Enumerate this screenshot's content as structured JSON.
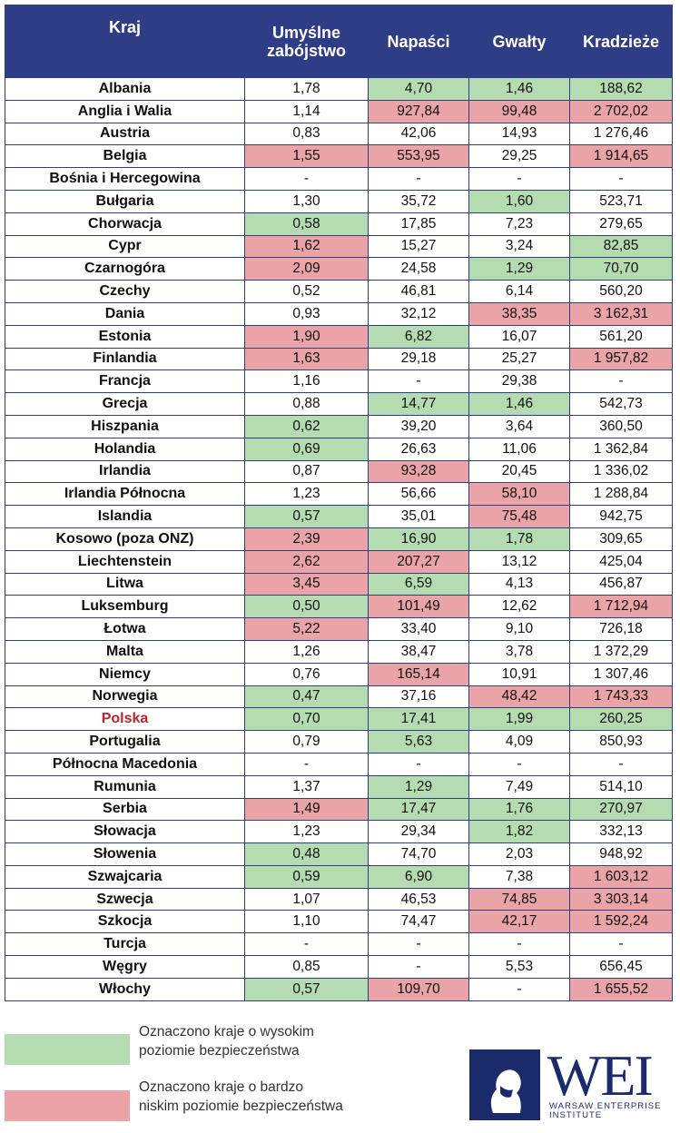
{
  "table": {
    "headers": {
      "country": "Kraj",
      "murders_line1": "Umyślne",
      "murders_line2": "zabójstwo",
      "assaults": "Napaści",
      "rapes": "Gwałty",
      "thefts": "Kradzieże"
    },
    "rows": [
      {
        "country": "Albania",
        "murders": "1,78",
        "assaults": "4,70",
        "rapes": "1,46",
        "thefts": "188,62",
        "hl": [
          "",
          "g",
          "g",
          "g"
        ]
      },
      {
        "country": "Anglia i Walia",
        "murders": "1,14",
        "assaults": "927,84",
        "rapes": "99,48",
        "thefts": "2 702,02",
        "hl": [
          "",
          "r",
          "r",
          "r"
        ]
      },
      {
        "country": "Austria",
        "murders": "0,83",
        "assaults": "42,06",
        "rapes": "14,93",
        "thefts": "1 276,46",
        "hl": [
          "",
          "",
          "",
          ""
        ]
      },
      {
        "country": "Belgia",
        "murders": "1,55",
        "assaults": "553,95",
        "rapes": "29,25",
        "thefts": "1 914,65",
        "hl": [
          "r",
          "r",
          "",
          "r"
        ]
      },
      {
        "country": "Bośnia i Hercegowina",
        "murders": "-",
        "assaults": "-",
        "rapes": "-",
        "thefts": "-",
        "hl": [
          "",
          "",
          "",
          ""
        ]
      },
      {
        "country": "Bułgaria",
        "murders": "1,30",
        "assaults": "35,72",
        "rapes": "1,60",
        "thefts": "523,71",
        "hl": [
          "",
          "",
          "g",
          ""
        ]
      },
      {
        "country": "Chorwacja",
        "murders": "0,58",
        "assaults": "17,85",
        "rapes": "7,23",
        "thefts": "279,65",
        "hl": [
          "g",
          "",
          "",
          ""
        ]
      },
      {
        "country": "Cypr",
        "murders": "1,62",
        "assaults": "15,27",
        "rapes": "3,24",
        "thefts": "82,85",
        "hl": [
          "r",
          "",
          "",
          "g"
        ]
      },
      {
        "country": "Czarnogóra",
        "murders": "2,09",
        "assaults": "24,58",
        "rapes": "1,29",
        "thefts": "70,70",
        "hl": [
          "r",
          "",
          "g",
          "g"
        ]
      },
      {
        "country": "Czechy",
        "murders": "0,52",
        "assaults": "46,81",
        "rapes": "6,14",
        "thefts": "560,20",
        "hl": [
          "",
          "",
          "",
          ""
        ]
      },
      {
        "country": "Dania",
        "murders": "0,93",
        "assaults": "32,12",
        "rapes": "38,35",
        "thefts": "3 162,31",
        "hl": [
          "",
          "",
          "r",
          "r"
        ]
      },
      {
        "country": "Estonia",
        "murders": "1,90",
        "assaults": "6,82",
        "rapes": "16,07",
        "thefts": "561,20",
        "hl": [
          "r",
          "g",
          "",
          ""
        ]
      },
      {
        "country": "Finlandia",
        "murders": "1,63",
        "assaults": "29,18",
        "rapes": "25,27",
        "thefts": "1 957,82",
        "hl": [
          "r",
          "",
          "",
          "r"
        ]
      },
      {
        "country": "Francja",
        "murders": "1,16",
        "assaults": "-",
        "rapes": "29,38",
        "thefts": "-",
        "hl": [
          "",
          "",
          "",
          ""
        ]
      },
      {
        "country": "Grecja",
        "murders": "0,88",
        "assaults": "14,77",
        "rapes": "1,46",
        "thefts": "542,73",
        "hl": [
          "",
          "g",
          "g",
          ""
        ]
      },
      {
        "country": "Hiszpania",
        "murders": "0,62",
        "assaults": "39,20",
        "rapes": "3,64",
        "thefts": "360,50",
        "hl": [
          "g",
          "",
          "",
          ""
        ]
      },
      {
        "country": "Holandia",
        "murders": "0,69",
        "assaults": "26,63",
        "rapes": "11,06",
        "thefts": "1 362,84",
        "hl": [
          "g",
          "",
          "",
          ""
        ]
      },
      {
        "country": "Irlandia",
        "murders": "0,87",
        "assaults": "93,28",
        "rapes": "20,45",
        "thefts": "1 336,02",
        "hl": [
          "",
          "r",
          "",
          ""
        ]
      },
      {
        "country": "Irlandia Północna",
        "murders": "1,23",
        "assaults": "56,66",
        "rapes": "58,10",
        "thefts": "1 288,84",
        "hl": [
          "",
          "",
          "r",
          ""
        ]
      },
      {
        "country": "Islandia",
        "murders": "0,57",
        "assaults": "35,01",
        "rapes": "75,48",
        "thefts": "942,75",
        "hl": [
          "g",
          "",
          "r",
          ""
        ]
      },
      {
        "country": "Kosowo (poza ONZ)",
        "murders": "2,39",
        "assaults": "16,90",
        "rapes": "1,78",
        "thefts": "309,65",
        "hl": [
          "r",
          "g",
          "g",
          ""
        ]
      },
      {
        "country": "Liechtenstein",
        "murders": "2,62",
        "assaults": "207,27",
        "rapes": "13,12",
        "thefts": "425,04",
        "hl": [
          "r",
          "r",
          "",
          ""
        ]
      },
      {
        "country": "Litwa",
        "murders": "3,45",
        "assaults": "6,59",
        "rapes": "4,13",
        "thefts": "456,87",
        "hl": [
          "r",
          "g",
          "",
          ""
        ]
      },
      {
        "country": "Luksemburg",
        "murders": "0,50",
        "assaults": "101,49",
        "rapes": "12,62",
        "thefts": "1 712,94",
        "hl": [
          "g",
          "r",
          "",
          "r"
        ]
      },
      {
        "country": "Łotwa",
        "murders": "5,22",
        "assaults": "33,40",
        "rapes": "9,10",
        "thefts": "726,18",
        "hl": [
          "r",
          "",
          "",
          ""
        ]
      },
      {
        "country": "Malta",
        "murders": "1,26",
        "assaults": "38,47",
        "rapes": "3,78",
        "thefts": "1 372,29",
        "hl": [
          "",
          "",
          "",
          ""
        ]
      },
      {
        "country": "Niemcy",
        "murders": "0,76",
        "assaults": "165,14",
        "rapes": "10,91",
        "thefts": "1 307,46",
        "hl": [
          "",
          "r",
          "",
          ""
        ]
      },
      {
        "country": "Norwegia",
        "murders": "0,47",
        "assaults": "37,16",
        "rapes": "48,42",
        "thefts": "1 743,33",
        "hl": [
          "g",
          "",
          "r",
          "r"
        ]
      },
      {
        "country": "Polska",
        "murders": "0,70",
        "assaults": "17,41",
        "rapes": "1,99",
        "thefts": "260,25",
        "hl": [
          "g",
          "g",
          "g",
          "g"
        ],
        "highlight": true
      },
      {
        "country": "Portugalia",
        "murders": "0,79",
        "assaults": "5,63",
        "rapes": "4,09",
        "thefts": "850,93",
        "hl": [
          "",
          "g",
          "",
          ""
        ]
      },
      {
        "country": "Północna Macedonia",
        "murders": "-",
        "assaults": "-",
        "rapes": "-",
        "thefts": "-",
        "hl": [
          "",
          "",
          "",
          ""
        ]
      },
      {
        "country": "Rumunia",
        "murders": "1,37",
        "assaults": "1,29",
        "rapes": "7,49",
        "thefts": "514,10",
        "hl": [
          "",
          "g",
          "",
          ""
        ]
      },
      {
        "country": "Serbia",
        "murders": "1,49",
        "assaults": "17,47",
        "rapes": "1,76",
        "thefts": "270,97",
        "hl": [
          "r",
          "g",
          "g",
          "g"
        ]
      },
      {
        "country": "Słowacja",
        "murders": "1,23",
        "assaults": "29,34",
        "rapes": "1,82",
        "thefts": "332,13",
        "hl": [
          "",
          "",
          "g",
          ""
        ]
      },
      {
        "country": "Słowenia",
        "murders": "0,48",
        "assaults": "74,70",
        "rapes": "2,03",
        "thefts": "948,92",
        "hl": [
          "g",
          "",
          "",
          ""
        ]
      },
      {
        "country": "Szwajcaria",
        "murders": "0,59",
        "assaults": "6,90",
        "rapes": "7,38",
        "thefts": "1 603,12",
        "hl": [
          "g",
          "g",
          "",
          "r"
        ]
      },
      {
        "country": "Szwecja",
        "murders": "1,07",
        "assaults": "46,53",
        "rapes": "74,85",
        "thefts": "3 303,14",
        "hl": [
          "",
          "",
          "r",
          "r"
        ]
      },
      {
        "country": "Szkocja",
        "murders": "1,10",
        "assaults": "74,47",
        "rapes": "42,17",
        "thefts": "1 592,24",
        "hl": [
          "",
          "",
          "r",
          "r"
        ]
      },
      {
        "country": "Turcja",
        "murders": "-",
        "assaults": "-",
        "rapes": "-",
        "thefts": "-",
        "hl": [
          "",
          "",
          "",
          ""
        ]
      },
      {
        "country": "Węgry",
        "murders": "0,85",
        "assaults": "-",
        "rapes": "5,53",
        "thefts": "656,45",
        "hl": [
          "",
          "",
          "",
          ""
        ]
      },
      {
        "country": "Włochy",
        "murders": "0,57",
        "assaults": "109,70",
        "rapes": "-",
        "thefts": "1 655,52",
        "hl": [
          "g",
          "r",
          "",
          "r"
        ]
      }
    ]
  },
  "legend": {
    "high_safety_line1": "Oznaczono kraje o wysokim",
    "high_safety_line2": "poziomie bezpieczeństwa",
    "low_safety_line1": "Oznaczono kraje o bardzo",
    "low_safety_line2": "niskim poziomie bezpieczeństwa"
  },
  "logo": {
    "text": "WEI",
    "sub_line1": "WARSAW ENTERPRISE",
    "sub_line2": "INSTITUTE"
  },
  "colors": {
    "header_bg": "#2f3d87",
    "high_safety": "#b5dbb0",
    "low_safety": "#eaa3a6",
    "highlight_text": "#c0222b",
    "logo": "#1b2a6b"
  }
}
